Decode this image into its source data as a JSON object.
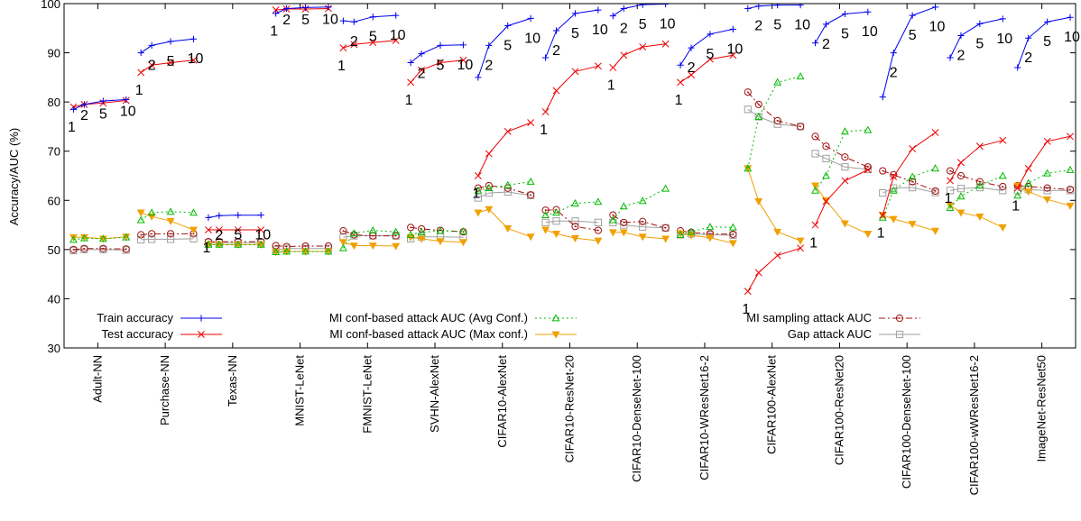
{
  "chart_data": {
    "type": "line",
    "ylabel": "Accuracy/AUC (%)",
    "xlabel": "",
    "ylim": [
      30,
      100
    ],
    "yticks": [
      30,
      40,
      50,
      60,
      70,
      80,
      90,
      100
    ],
    "grid": false,
    "checkpoint_labels": [
      "1",
      "2",
      "5",
      "10"
    ],
    "groups": [
      "Adult-NN",
      "Purchase-NN",
      "Texas-NN",
      "MNIST-LeNet",
      "FMNIST-LeNet",
      "SVHN-AlexNet",
      "CIFAR10-AlexNet",
      "CIFAR10-ResNet-20",
      "CIFAR10-DenseNet-100",
      "CIFAR10-WResNet16-2",
      "CIFAR100-AlexNet",
      "CIFAR100-ResNet20",
      "CIFAR100-DenseNet-100",
      "CIFAR100-wWResNet16-2",
      "ImageNet-ResNet50"
    ],
    "legend": [
      {
        "name": "Train accuracy",
        "key": "train"
      },
      {
        "name": "Test accuracy",
        "key": "test"
      },
      {
        "name": "MI conf-based attack AUC (Avg Conf.)",
        "key": "avg"
      },
      {
        "name": "MI conf-based attack AUC (Max conf.)",
        "key": "max"
      },
      {
        "name": "MI sampling attack AUC",
        "key": "samp"
      },
      {
        "name": "Gap attack AUC",
        "key": "gap"
      }
    ],
    "series_styles": {
      "train": {
        "color": "#0000ee",
        "marker": "plus",
        "dash": ""
      },
      "test": {
        "color": "#ee0000",
        "marker": "x",
        "dash": ""
      },
      "avg": {
        "color": "#00bb00",
        "marker": "triangle-up",
        "dash": "2,3"
      },
      "max": {
        "color": "#f0a000",
        "marker": "triangle-down",
        "dash": ""
      },
      "samp": {
        "color": "#a01010",
        "marker": "circle-dot",
        "dash": "7,3,2,3"
      },
      "gap": {
        "color": "#a0a0a0",
        "marker": "square",
        "dash": ""
      }
    },
    "data": {
      "train": [
        [
          78.5,
          79.5,
          80.2,
          80.5
        ],
        [
          90.0,
          91.5,
          92.3,
          92.8
        ],
        [
          56.5,
          56.9,
          57.0,
          57.0
        ],
        [
          98.0,
          99.0,
          99.2,
          99.3
        ],
        [
          96.5,
          96.3,
          97.3,
          97.6
        ],
        [
          88.0,
          89.8,
          91.5,
          91.6
        ],
        [
          85.0,
          91.5,
          95.5,
          97.0
        ],
        [
          89.0,
          94.5,
          98.0,
          98.7
        ],
        [
          97.5,
          99.0,
          99.8,
          99.9
        ],
        [
          87.5,
          91.0,
          93.8,
          94.8
        ],
        [
          99.0,
          99.5,
          99.7,
          99.7
        ],
        [
          92.0,
          95.8,
          97.9,
          98.3
        ],
        [
          81.0,
          90.0,
          97.6,
          99.3
        ],
        [
          89.0,
          93.5,
          95.9,
          96.9
        ],
        [
          87.0,
          93.0,
          96.3,
          97.2
        ]
      ],
      "test": [
        [
          79.0,
          79.5,
          79.8,
          80.3
        ],
        [
          86.0,
          87.5,
          88.0,
          88.5
        ],
        [
          54.0,
          54.0,
          54.0,
          54.0
        ],
        [
          98.7,
          98.9,
          98.9,
          99.0
        ],
        [
          91.0,
          91.7,
          92.1,
          92.5
        ],
        [
          84.0,
          86.5,
          88.0,
          88.5
        ],
        [
          65.0,
          69.5,
          74.0,
          75.8
        ],
        [
          78.0,
          82.3,
          86.2,
          87.3
        ],
        [
          87.0,
          89.5,
          91.2,
          91.8
        ],
        [
          84.0,
          85.5,
          88.7,
          89.5
        ],
        [
          41.5,
          45.3,
          48.8,
          50.3
        ],
        [
          55.0,
          59.8,
          64.0,
          66.2
        ],
        [
          57.0,
          64.8,
          70.5,
          73.8
        ],
        [
          64.0,
          67.7,
          71.0,
          72.2
        ],
        [
          62.5,
          66.5,
          72.0,
          73.0
        ]
      ],
      "avg": [
        [
          52.0,
          52.3,
          52.2,
          52.5
        ],
        [
          56.0,
          57.5,
          57.7,
          57.5
        ],
        [
          51.0,
          51.0,
          51.0,
          51.0
        ],
        [
          49.5,
          49.6,
          49.6,
          49.6
        ],
        [
          50.3,
          53.3,
          53.9,
          53.6
        ],
        [
          53.0,
          53.5,
          53.8,
          53.7
        ],
        [
          62.0,
          62.5,
          63.1,
          63.8
        ],
        [
          57.0,
          57.5,
          59.4,
          59.7
        ],
        [
          56.0,
          58.8,
          59.9,
          62.4
        ],
        [
          53.0,
          53.6,
          54.6,
          54.5
        ],
        [
          66.5,
          77.0,
          84.0,
          85.2
        ],
        [
          62.0,
          65.0,
          74.0,
          74.3
        ],
        [
          56.5,
          62.0,
          64.8,
          66.5
        ],
        [
          58.5,
          60.8,
          63.0,
          65.0
        ],
        [
          61.0,
          63.5,
          65.5,
          66.2
        ]
      ],
      "max": [
        [
          52.5,
          52.5,
          52.2,
          52.6
        ],
        [
          57.5,
          56.7,
          55.8,
          54.0
        ],
        [
          51.0,
          51.0,
          51.0,
          51.0
        ],
        [
          49.5,
          49.6,
          49.6,
          49.6
        ],
        [
          51.5,
          50.8,
          50.8,
          50.7
        ],
        [
          52.5,
          52.2,
          51.7,
          51.5
        ],
        [
          57.5,
          58.2,
          54.3,
          52.6
        ],
        [
          54.0,
          53.2,
          52.3,
          51.8
        ],
        [
          53.5,
          53.5,
          52.6,
          52.2
        ],
        [
          53.3,
          52.9,
          52.4,
          51.3
        ],
        [
          66.5,
          59.8,
          53.6,
          51.8
        ],
        [
          63.0,
          60.0,
          55.3,
          53.2
        ],
        [
          57.0,
          56.2,
          55.2,
          53.8
        ],
        [
          59.0,
          57.5,
          56.7,
          54.5
        ],
        [
          63.0,
          61.8,
          60.2,
          58.9
        ]
      ],
      "samp": [
        [
          50.0,
          50.2,
          50.2,
          50.1
        ],
        [
          53.0,
          53.2,
          53.2,
          53.2
        ],
        [
          51.6,
          51.6,
          51.6,
          51.6
        ],
        [
          50.8,
          50.6,
          50.7,
          50.7
        ],
        [
          53.8,
          53.0,
          52.8,
          52.8
        ],
        [
          54.5,
          54.2,
          53.9,
          53.6
        ],
        [
          62.5,
          63.0,
          62.5,
          61.1
        ],
        [
          58.0,
          58.1,
          54.7,
          53.9
        ],
        [
          57.0,
          55.5,
          55.7,
          54.4
        ],
        [
          53.8,
          53.5,
          53.2,
          53.1
        ],
        [
          82.0,
          79.5,
          76.2,
          75.0
        ],
        [
          73.0,
          71.0,
          68.8,
          66.8
        ],
        [
          66.0,
          65.2,
          63.8,
          61.9
        ],
        [
          66.0,
          65.0,
          63.8,
          62.8
        ],
        [
          63.0,
          62.8,
          62.5,
          62.2
        ]
      ],
      "gap": [
        [
          49.8,
          50.0,
          50.0,
          49.9
        ],
        [
          52.0,
          52.1,
          52.1,
          52.2
        ],
        [
          51.4,
          51.4,
          51.4,
          51.4
        ],
        [
          50.0,
          50.2,
          50.2,
          50.2
        ],
        [
          52.5,
          52.8,
          52.8,
          52.8
        ],
        [
          52.2,
          52.6,
          52.6,
          52.5
        ],
        [
          60.5,
          61.5,
          61.7,
          61.0
        ],
        [
          55.5,
          55.8,
          55.8,
          55.5
        ],
        [
          55.5,
          55.0,
          54.6,
          54.4
        ],
        [
          53.0,
          53.2,
          53.0,
          52.9
        ],
        [
          78.5,
          77.0,
          75.5,
          75.0
        ],
        [
          69.5,
          68.5,
          66.8,
          66.3
        ],
        [
          61.5,
          62.5,
          62.6,
          61.6
        ],
        [
          62.0,
          62.4,
          62.6,
          62.0
        ],
        [
          62.0,
          62.2,
          62.0,
          62.0
        ]
      ]
    }
  }
}
